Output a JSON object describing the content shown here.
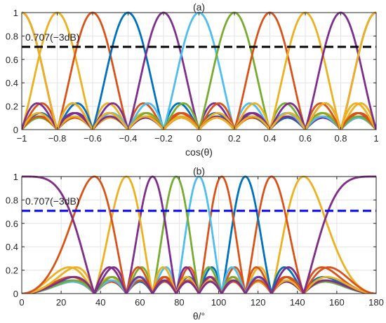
{
  "chart_data": [
    {
      "panel": "(a)",
      "type": "line",
      "xlabel": "cos(θ)",
      "ylabel": "",
      "xlim": [
        -1,
        1
      ],
      "ylim": [
        0,
        1
      ],
      "xticks": [
        -1,
        -0.8,
        -0.6,
        -0.4,
        -0.2,
        0,
        0.2,
        0.4,
        0.6,
        0.8,
        1
      ],
      "xtick_labels": [
        "−1",
        "−0.8",
        "−0.6",
        "−0.4",
        "−0.2",
        "0",
        "0.2",
        "0.4",
        "0.6",
        "0.8",
        "1"
      ],
      "yticks": [
        0,
        0.2,
        0.4,
        0.6,
        0.8,
        1
      ],
      "ytick_labels": [
        "0",
        "0.2",
        "0.4",
        "0.6",
        "0.8",
        "1"
      ],
      "grid": true,
      "beam_model": "|sin(N·π(u−u0)/2) / (N·sin(π(u−u0)/2))|, N = 10",
      "beam_centers_u": [
        -1,
        -0.8,
        -0.6,
        -0.4,
        -0.2,
        0,
        0.2,
        0.4,
        0.6,
        0.8,
        1
      ],
      "beam_colors": [
        "#7E2F8E",
        "#EDB120",
        "#D95319",
        "#0072BD",
        "#7E2F8E",
        "#4DBEEE",
        "#77AC30",
        "#D95319",
        "#EDB120",
        "#7E2F8E",
        "#EDB120"
      ],
      "reference_line": {
        "y": 0.707,
        "label": "0.707(−3dB)",
        "color": "#000000",
        "style": "dashed"
      }
    },
    {
      "panel": "(b)",
      "type": "line",
      "xlabel": "θ/°",
      "ylabel": "",
      "xlim": [
        0,
        180
      ],
      "ylim": [
        0,
        1
      ],
      "xticks": [
        0,
        20,
        40,
        60,
        80,
        100,
        120,
        140,
        160,
        180
      ],
      "xtick_labels": [
        "0",
        "20",
        "40",
        "60",
        "80",
        "100",
        "120",
        "140",
        "160",
        "180"
      ],
      "yticks": [
        0,
        0.2,
        0.4,
        0.6,
        0.8,
        1
      ],
      "ytick_labels": [
        "0",
        "0.2",
        "0.4",
        "0.6",
        "0.8",
        "1"
      ],
      "grid": true,
      "beam_model": "same beams plotted against θ (u = cos θ)",
      "beam_centers_u": [
        -1,
        -0.8,
        -0.6,
        -0.4,
        -0.2,
        0,
        0.2,
        0.4,
        0.6,
        0.8,
        1
      ],
      "beam_peak_angles_deg": [
        180,
        143.1,
        126.9,
        113.6,
        101.5,
        90,
        78.5,
        66.4,
        53.1,
        36.9,
        0
      ],
      "beam_colors": [
        "#EDB120",
        "#EDB120",
        "#D95319",
        "#0072BD",
        "#D95319",
        "#4DBEEE",
        "#77AC30",
        "#7E2F8E",
        "#EDB120",
        "#D95319",
        "#7E2F8E"
      ],
      "reference_line": {
        "y": 0.707,
        "label": "0.707(−3dB)",
        "color": "#0000FF",
        "style": "dashed"
      }
    }
  ]
}
